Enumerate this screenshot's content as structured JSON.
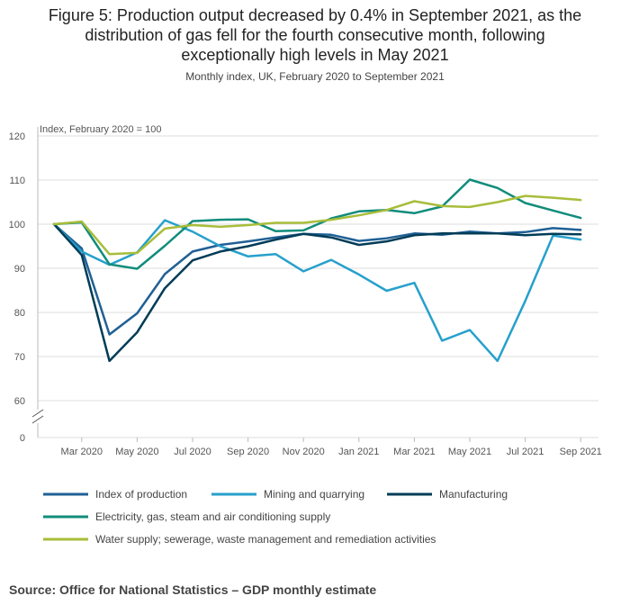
{
  "title_lines": [
    "Figure 5: Production output decreased by 0.4% in September 2021, as the",
    "distribution of gas fell for the fourth consecutive month, following",
    "exceptionally high levels in May 2021"
  ],
  "subtitle": "Monthly index, UK, February 2020 to September 2021",
  "source": "Source: Office for National Statistics – GDP monthly estimate",
  "chart_data": {
    "type": "line",
    "title": "Figure 5: Production output decreased by 0.4% in September 2021, as the distribution of gas fell for the fourth consecutive month, following exceptionally high levels in May 2021",
    "ylabel": "Index, February 2020 = 100",
    "xlabel": "",
    "ylim": [
      60,
      120
    ],
    "y_ticks": [
      120,
      110,
      100,
      90,
      80,
      70,
      60
    ],
    "y_zero_label": "0",
    "axis_break": true,
    "x": [
      "Feb 2020",
      "Mar 2020",
      "Apr 2020",
      "May 2020",
      "Jun 2020",
      "Jul 2020",
      "Aug 2020",
      "Sep 2020",
      "Oct 2020",
      "Nov 2020",
      "Dec 2020",
      "Jan 2021",
      "Feb 2021",
      "Mar 2021",
      "Apr 2021",
      "May 2021",
      "Jun 2021",
      "Jul 2021",
      "Aug 2021",
      "Sep 2021"
    ],
    "x_tick_labels": [
      {
        "index": 1,
        "label": "Mar 2020"
      },
      {
        "index": 3,
        "label": "May 2020"
      },
      {
        "index": 5,
        "label": "Jul 2020"
      },
      {
        "index": 7,
        "label": "Sep 2020"
      },
      {
        "index": 9,
        "label": "Nov 2020"
      },
      {
        "index": 11,
        "label": "Jan 2021"
      },
      {
        "index": 13,
        "label": "Mar 2021"
      },
      {
        "index": 15,
        "label": "May 2021"
      },
      {
        "index": 17,
        "label": "Jul 2021"
      },
      {
        "index": 19,
        "label": "Sep 2021"
      }
    ],
    "series": [
      {
        "name": "Index of production",
        "color": "#206095",
        "values": [
          100,
          94.5,
          75,
          79.8,
          88.7,
          93.8,
          95.3,
          96.1,
          97.0,
          97.8,
          97.6,
          96.2,
          96.8,
          97.9,
          97.6,
          98.3,
          97.9,
          98.2,
          99.1,
          98.7
        ]
      },
      {
        "name": "Mining and quarrying",
        "color": "#27a0cc",
        "values": [
          100,
          93.8,
          90.8,
          93.6,
          100.9,
          98.3,
          95.0,
          92.7,
          93.2,
          89.3,
          91.9,
          88.6,
          84.9,
          86.7,
          73.6,
          76.0,
          69.0,
          82.6,
          97.4,
          96.5
        ]
      },
      {
        "name": "Manufacturing",
        "color": "#003c57",
        "values": [
          100,
          93.0,
          69.0,
          75.5,
          85.5,
          91.8,
          93.8,
          95.0,
          96.5,
          97.8,
          97.0,
          95.3,
          96.1,
          97.5,
          97.9,
          97.9,
          97.9,
          97.5,
          97.8,
          97.7
        ]
      },
      {
        "name": "Electricity, gas, steam and air conditioning supply",
        "color": "#118c7b",
        "values": [
          100,
          100.4,
          90.9,
          89.9,
          95.1,
          100.7,
          101.0,
          101.1,
          98.4,
          98.6,
          101.3,
          102.9,
          103.2,
          102.5,
          104.0,
          110.1,
          108.2,
          104.8,
          103.1,
          101.4
        ]
      },
      {
        "name": "Water supply; sewerage, waste management and remediation activities",
        "color": "#a8bd3a",
        "values": [
          100,
          100.6,
          93.2,
          93.5,
          99.0,
          99.8,
          99.4,
          99.8,
          100.3,
          100.3,
          101.0,
          102.0,
          103.2,
          105.2,
          104.1,
          103.9,
          105.0,
          106.4,
          106.0,
          105.5
        ]
      }
    ],
    "legend_position": "bottom"
  }
}
